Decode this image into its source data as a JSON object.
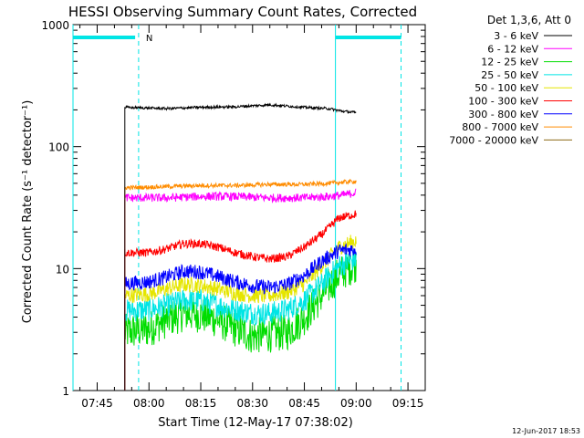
{
  "chart_data": {
    "type": "line",
    "title": "HESSI Observing Summary Count Rates, Corrected",
    "xlabel": "Start Time (12-May-17 07:38:02)",
    "ylabel": "Corrected Count Rate (s⁻¹ detector⁻¹)",
    "y_scale": "log",
    "ylim": [
      1,
      1000
    ],
    "xlim_minutes": [
      "07:38",
      "09:20"
    ],
    "x_ticks": [
      "07:45",
      "08:00",
      "08:15",
      "08:30",
      "08:45",
      "09:00",
      "09:15"
    ],
    "y_ticks": [
      "1",
      "10",
      "100",
      "1000"
    ],
    "legend": {
      "placement": "top-right",
      "header": "Det 1,3,6, Att 0"
    },
    "timestamp": "12-Jun-2017 18:53",
    "flag_label": "N",
    "day_night": {
      "bar_color": "#00e5e5",
      "bars": [
        {
          "start": "07:38",
          "end": "07:56"
        },
        {
          "start": "08:54",
          "end": "09:13"
        }
      ],
      "dashed_lines": [
        "07:57",
        "09:13"
      ],
      "solid_lines": [
        "07:38",
        "08:54"
      ]
    },
    "series": [
      {
        "name": "3 - 6 keV",
        "color": "#000000",
        "start": "07:53",
        "end": "09:00",
        "x": [
          "07:53",
          "08:05",
          "08:15",
          "08:25",
          "08:35",
          "08:45",
          "08:52",
          "08:56",
          "09:00"
        ],
        "y": [
          210,
          205,
          210,
          212,
          220,
          210,
          205,
          195,
          190
        ]
      },
      {
        "name": "6 - 12 keV",
        "color": "#ff00ff",
        "start": "07:53",
        "end": "09:00",
        "x": [
          "07:53",
          "08:05",
          "08:15",
          "08:25",
          "08:35",
          "08:45",
          "08:52",
          "08:56",
          "09:00"
        ],
        "y": [
          38,
          38,
          39,
          39,
          38,
          38,
          39,
          40,
          42
        ]
      },
      {
        "name": "12 - 25 keV",
        "color": "#00dd00",
        "start": "07:53",
        "end": "09:00",
        "x": [
          "07:53",
          "08:00",
          "08:05",
          "08:10",
          "08:15",
          "08:20",
          "08:25",
          "08:30",
          "08:35",
          "08:40",
          "08:45",
          "08:50",
          "08:55",
          "09:00"
        ],
        "y": [
          3.0,
          3.2,
          3.8,
          4.3,
          4.2,
          3.8,
          3.2,
          2.8,
          2.9,
          3.0,
          4.0,
          6.0,
          9.0,
          11.0
        ]
      },
      {
        "name": "25 - 50 keV",
        "color": "#00e5e5",
        "start": "07:53",
        "end": "09:00",
        "x": [
          "07:53",
          "08:00",
          "08:05",
          "08:10",
          "08:15",
          "08:20",
          "08:25",
          "08:30",
          "08:35",
          "08:40",
          "08:45",
          "08:50",
          "08:55",
          "09:00"
        ],
        "y": [
          4.5,
          4.6,
          5.0,
          5.5,
          5.5,
          5.0,
          4.6,
          4.3,
          4.3,
          4.6,
          5.5,
          7.5,
          10.5,
          12.0
        ]
      },
      {
        "name": "50 - 100 keV",
        "color": "#e5e500",
        "start": "07:53",
        "end": "09:00",
        "x": [
          "07:53",
          "08:00",
          "08:05",
          "08:10",
          "08:15",
          "08:20",
          "08:25",
          "08:30",
          "08:35",
          "08:40",
          "08:45",
          "08:50",
          "08:55",
          "09:00"
        ],
        "y": [
          6.0,
          6.2,
          6.8,
          7.4,
          7.3,
          6.8,
          6.3,
          6.0,
          6.0,
          6.4,
          7.5,
          10.5,
          15.0,
          17.0
        ]
      },
      {
        "name": "100 - 300 keV",
        "color": "#ff0000",
        "start": "07:53",
        "end": "09:00",
        "x": [
          "07:53",
          "08:00",
          "08:05",
          "08:10",
          "08:15",
          "08:20",
          "08:25",
          "08:30",
          "08:35",
          "08:40",
          "08:45",
          "08:50",
          "08:55",
          "09:00"
        ],
        "y": [
          13.5,
          13.5,
          14.5,
          16.0,
          16.0,
          15.0,
          13.5,
          12.5,
          12.0,
          12.5,
          15.0,
          19.0,
          26.0,
          28.0
        ]
      },
      {
        "name": "300 - 800 keV",
        "color": "#0000ff",
        "start": "07:53",
        "end": "09:00",
        "x": [
          "07:53",
          "08:00",
          "08:05",
          "08:10",
          "08:15",
          "08:20",
          "08:25",
          "08:30",
          "08:35",
          "08:40",
          "08:45",
          "08:50",
          "08:55",
          "09:00"
        ],
        "y": [
          7.5,
          7.8,
          8.5,
          9.5,
          9.4,
          8.6,
          7.8,
          7.2,
          7.0,
          7.4,
          8.8,
          11.5,
          14.0,
          14.5
        ]
      },
      {
        "name": "800 - 7000 keV",
        "color": "#ff8c00",
        "start": "07:53",
        "end": "09:00",
        "x": [
          "07:53",
          "08:05",
          "08:15",
          "08:25",
          "08:35",
          "08:45",
          "08:52",
          "08:56",
          "09:00"
        ],
        "y": [
          46,
          47,
          48,
          48,
          49,
          49,
          50,
          51,
          52
        ]
      },
      {
        "name": "7000 - 20000 keV",
        "color": "#8b6914",
        "start": "07:53",
        "end": "09:00",
        "x": [],
        "y": []
      }
    ]
  }
}
